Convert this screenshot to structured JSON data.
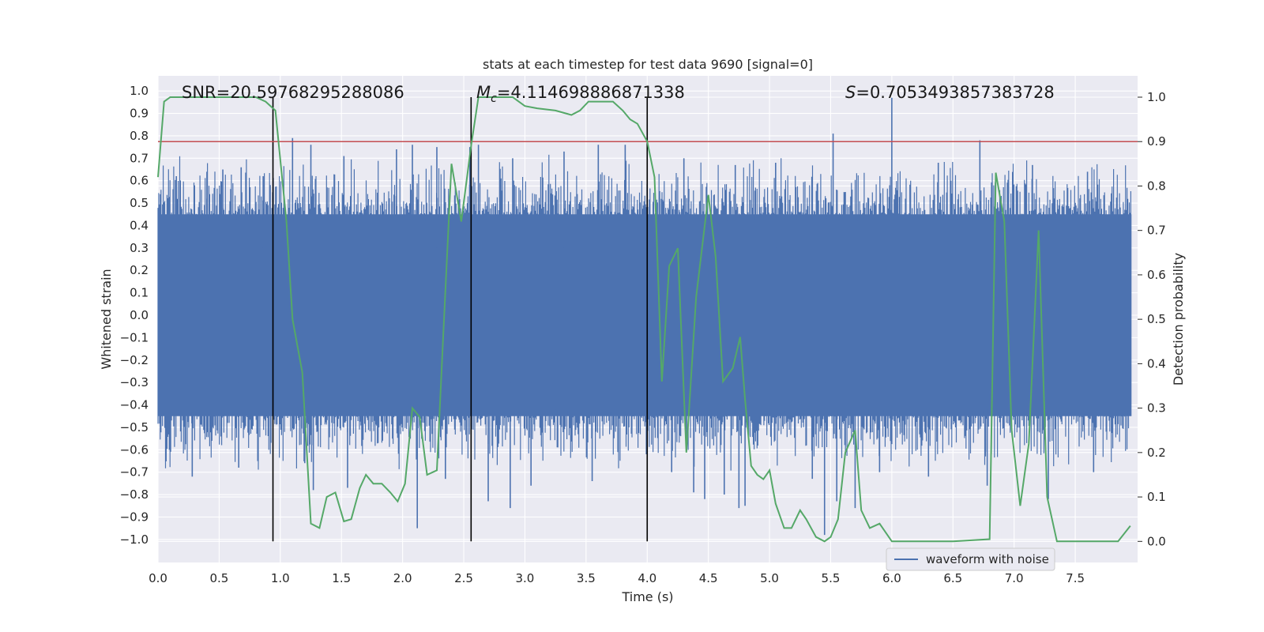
{
  "chart_data": {
    "type": "line",
    "title": "stats at each timestep for test data 9690 [signal=0]",
    "xlabel": "Time (s)",
    "ylabel": "Whitened strain",
    "y2label": "Detection probability",
    "xlim": [
      0.0,
      8.0
    ],
    "ylim": [
      -1.1,
      1.1
    ],
    "y2lim": [
      -0.05,
      1.05
    ],
    "xticks": [
      "0.0",
      "0.5",
      "1.0",
      "1.5",
      "2.0",
      "2.5",
      "3.0",
      "3.5",
      "4.0",
      "4.5",
      "5.0",
      "5.5",
      "6.0",
      "6.5",
      "7.0",
      "7.5"
    ],
    "yticks": [
      "1.0",
      "0.9",
      "0.8",
      "0.7",
      "0.6",
      "0.5",
      "0.4",
      "0.3",
      "0.2",
      "0.1",
      "0.0",
      "-0.1",
      "-0.2",
      "-0.3",
      "-0.4",
      "-0.5",
      "-0.6",
      "-0.7",
      "-0.8",
      "-0.9",
      "-1.0"
    ],
    "y2ticks": [
      "1.0",
      "0.9",
      "0.8",
      "0.7",
      "0.6",
      "0.5",
      "0.4",
      "0.3",
      "0.2",
      "0.1",
      "0.0"
    ],
    "annotations": {
      "snr": "SNR=20.59768295288086",
      "mc_symbol": "M",
      "mc_subscript": "c",
      "mc_value": "=4.114698886871338",
      "s_symbol": "S",
      "s_value": "=0.7053493857383728"
    },
    "threshold": {
      "value": 0.9,
      "axis": "y2",
      "color": "#c44e52"
    },
    "event_markers_x": [
      0.94,
      2.56,
      4.0
    ],
    "series": [
      {
        "name": "waveform with noise",
        "axis": "y",
        "color": "#4c72b0",
        "noise_band": [
          -0.45,
          0.45
        ],
        "spikes_up": [
          [
            0.15,
            0.62
          ],
          [
            0.4,
            0.64
          ],
          [
            0.53,
            0.65
          ],
          [
            0.68,
            0.66
          ],
          [
            0.86,
            0.62
          ],
          [
            1.1,
            0.79
          ],
          [
            1.25,
            0.76
          ],
          [
            1.52,
            0.71
          ],
          [
            1.95,
            0.74
          ],
          [
            2.08,
            0.76
          ],
          [
            2.28,
            0.75
          ],
          [
            2.55,
            0.75
          ],
          [
            2.62,
            0.76
          ],
          [
            2.9,
            0.7
          ],
          [
            3.32,
            0.73
          ],
          [
            3.6,
            0.76
          ],
          [
            3.82,
            0.76
          ],
          [
            4.3,
            0.7
          ],
          [
            4.72,
            0.67
          ],
          [
            5.05,
            0.68
          ],
          [
            5.52,
            0.81
          ],
          [
            6.0,
            0.97
          ],
          [
            6.38,
            0.68
          ],
          [
            6.72,
            0.78
          ],
          [
            7.15,
            0.67
          ],
          [
            7.6,
            0.64
          ]
        ],
        "spikes_down": [
          [
            0.28,
            -0.72
          ],
          [
            0.66,
            -0.68
          ],
          [
            1.2,
            -0.66
          ],
          [
            1.27,
            -0.78
          ],
          [
            1.55,
            -0.77
          ],
          [
            2.12,
            -0.95
          ],
          [
            2.35,
            -0.73
          ],
          [
            2.7,
            -0.83
          ],
          [
            2.88,
            -0.86
          ],
          [
            3.05,
            -0.76
          ],
          [
            3.55,
            -0.74
          ],
          [
            4.2,
            -0.7
          ],
          [
            4.38,
            -0.79
          ],
          [
            4.47,
            -0.82
          ],
          [
            4.63,
            -0.8
          ],
          [
            4.75,
            -0.86
          ],
          [
            4.8,
            -0.85
          ],
          [
            5.35,
            -0.73
          ],
          [
            5.45,
            -0.98
          ],
          [
            5.55,
            -0.83
          ],
          [
            5.7,
            -0.86
          ],
          [
            5.9,
            -0.7
          ],
          [
            6.3,
            -0.72
          ],
          [
            6.78,
            -0.76
          ],
          [
            7.28,
            -0.82
          ],
          [
            7.65,
            -0.7
          ]
        ]
      },
      {
        "name": "detection probability",
        "axis": "y2",
        "color": "#55a868",
        "x": [
          0.0,
          0.05,
          0.1,
          0.2,
          0.5,
          0.8,
          0.88,
          0.96,
          1.05,
          1.1,
          1.18,
          1.25,
          1.32,
          1.38,
          1.45,
          1.52,
          1.58,
          1.65,
          1.7,
          1.76,
          1.83,
          1.9,
          1.96,
          2.02,
          2.08,
          2.14,
          2.2,
          2.28,
          2.33,
          2.4,
          2.48,
          2.56,
          2.62,
          2.72,
          2.9,
          3.0,
          3.1,
          3.25,
          3.38,
          3.45,
          3.52,
          3.6,
          3.72,
          3.8,
          3.86,
          3.92,
          4.0,
          4.06,
          4.12,
          4.18,
          4.25,
          4.32,
          4.4,
          4.5,
          4.56,
          4.62,
          4.7,
          4.76,
          4.8,
          4.85,
          4.9,
          4.95,
          5.0,
          5.05,
          5.12,
          5.18,
          5.25,
          5.3,
          5.38,
          5.45,
          5.5,
          5.56,
          5.62,
          5.7,
          5.75,
          5.82,
          5.9,
          6.0,
          6.2,
          6.5,
          6.8,
          6.85,
          6.92,
          6.98,
          7.05,
          7.12,
          7.2,
          7.27,
          7.35,
          7.5,
          7.7,
          7.85,
          7.95
        ],
        "y": [
          0.82,
          0.99,
          1.0,
          1.0,
          1.0,
          1.0,
          0.99,
          0.97,
          0.72,
          0.5,
          0.38,
          0.04,
          0.03,
          0.1,
          0.11,
          0.045,
          0.05,
          0.12,
          0.15,
          0.13,
          0.13,
          0.11,
          0.09,
          0.13,
          0.3,
          0.28,
          0.15,
          0.16,
          0.45,
          0.85,
          0.72,
          0.89,
          1.0,
          1.0,
          1.0,
          0.98,
          0.975,
          0.97,
          0.96,
          0.97,
          0.99,
          0.99,
          0.99,
          0.97,
          0.95,
          0.94,
          0.9,
          0.82,
          0.36,
          0.62,
          0.66,
          0.2,
          0.55,
          0.78,
          0.64,
          0.36,
          0.39,
          0.46,
          0.32,
          0.17,
          0.15,
          0.14,
          0.16,
          0.085,
          0.03,
          0.03,
          0.07,
          0.05,
          0.01,
          0.0,
          0.01,
          0.05,
          0.2,
          0.25,
          0.07,
          0.03,
          0.04,
          0.0,
          0.0,
          0.0,
          0.005,
          0.83,
          0.72,
          0.25,
          0.08,
          0.22,
          0.7,
          0.1,
          0.0,
          0.0,
          0.0,
          0.0,
          0.035
        ]
      }
    ],
    "legend": {
      "position": "lower-right",
      "entries": [
        "waveform with noise"
      ]
    }
  }
}
